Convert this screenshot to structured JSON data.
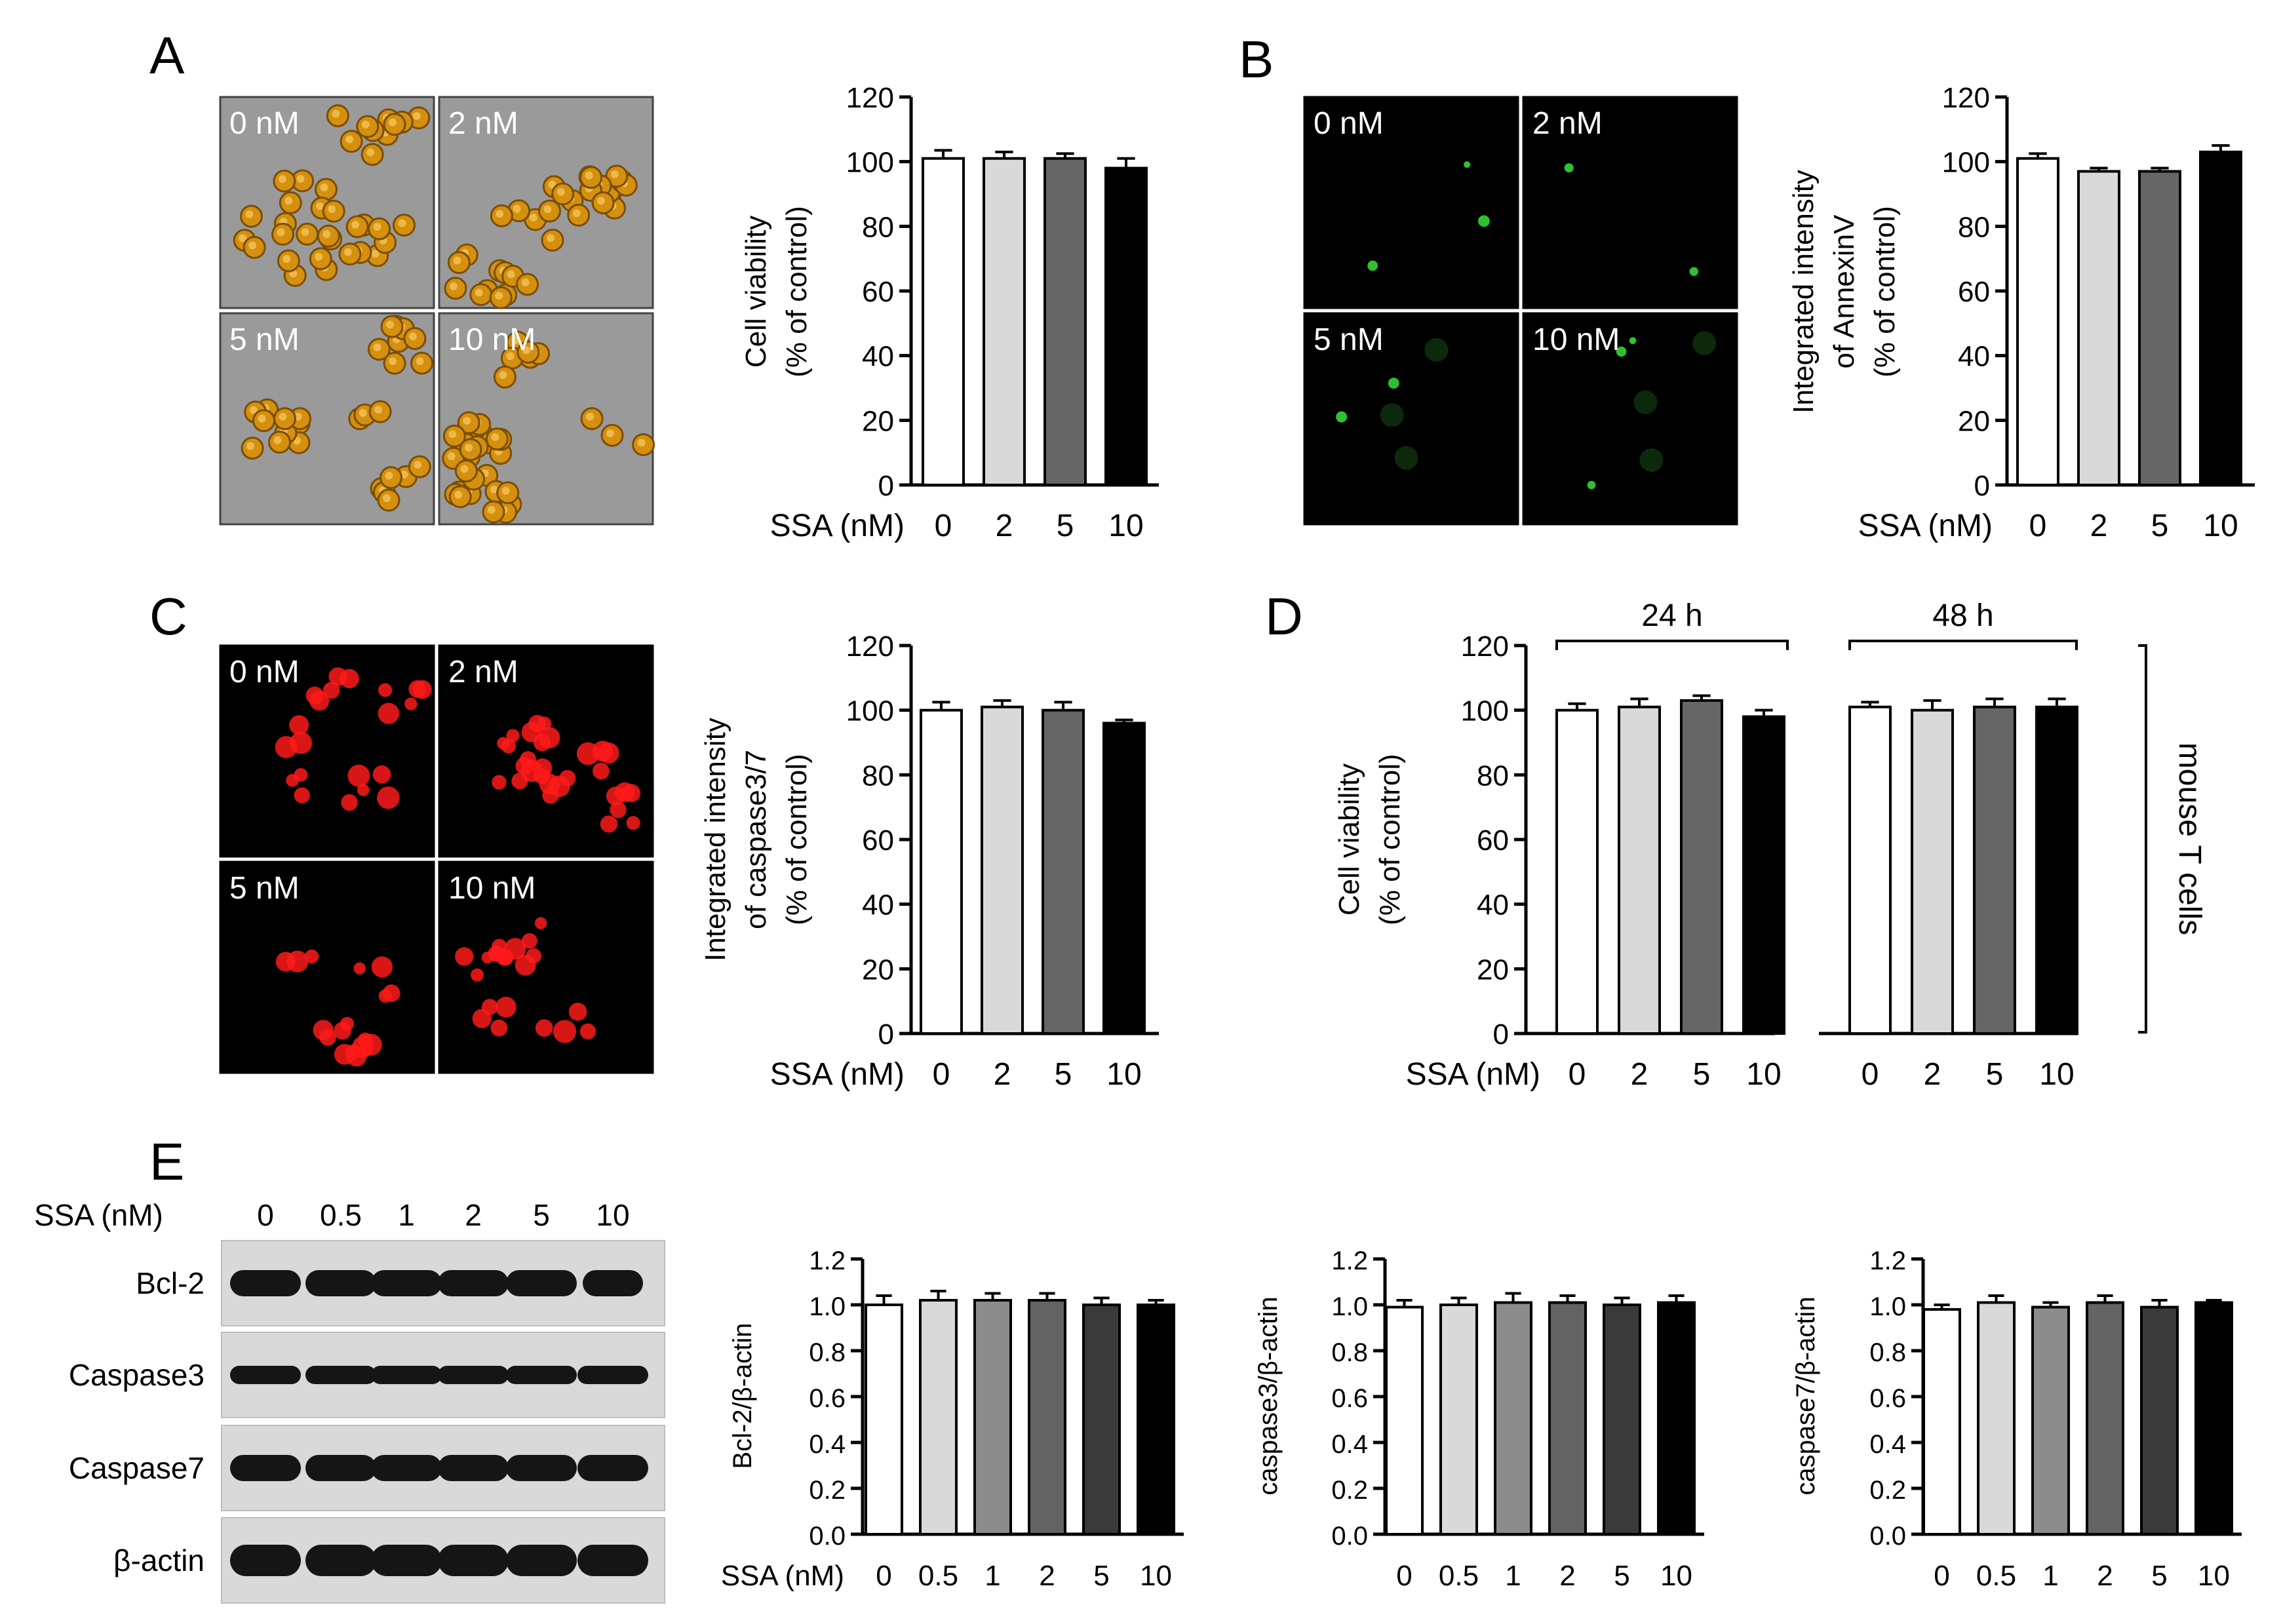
{
  "panels": {
    "A": {
      "letter": "A"
    },
    "B": {
      "letter": "B"
    },
    "C": {
      "letter": "C"
    },
    "D": {
      "letter": "D"
    },
    "E": {
      "letter": "E"
    }
  },
  "micrographs": {
    "dose_labels": [
      "0 nM",
      "2 nM",
      "5 nM",
      "10 nM"
    ],
    "A_style": "brightfield",
    "B_style": "green-fluorescence",
    "C_style": "red-fluorescence"
  },
  "colors": {
    "bar_fills_4": [
      "#ffffff",
      "#d9d9d9",
      "#666666",
      "#000000"
    ],
    "bar_fills_6": [
      "#ffffff",
      "#d9d9d9",
      "#8c8c8c",
      "#636363",
      "#3a3a3a",
      "#000000"
    ],
    "bar_stroke": "#000000",
    "brightfield_bg": "#9a9a9a",
    "cell_color": "#d4900e",
    "green_spot": "#38e038",
    "red_spot": "#ff1a1a"
  },
  "chart_data": [
    {
      "id": "A",
      "type": "bar",
      "x_title": "SSA (nM)",
      "categories": [
        "0",
        "2",
        "5",
        "10"
      ],
      "values": [
        101,
        101,
        101,
        98
      ],
      "errors": [
        2.5,
        2,
        1.5,
        3
      ],
      "ylabel": [
        "Cell viability",
        "(% of control)"
      ],
      "ylim": [
        0,
        120
      ],
      "yticks": [
        "0",
        "20",
        "40",
        "60",
        "80",
        "100",
        "120"
      ]
    },
    {
      "id": "B",
      "type": "bar",
      "x_title": "SSA (nM)",
      "categories": [
        "0",
        "2",
        "5",
        "10"
      ],
      "values": [
        101,
        97,
        97,
        103
      ],
      "errors": [
        1.5,
        1,
        1,
        2
      ],
      "ylabel": [
        "Integrated intensity",
        "of AnnexinV",
        "(% of control)"
      ],
      "ylim": [
        0,
        120
      ],
      "yticks": [
        "0",
        "20",
        "40",
        "60",
        "80",
        "100",
        "120"
      ]
    },
    {
      "id": "C",
      "type": "bar",
      "x_title": "SSA (nM)",
      "categories": [
        "0",
        "2",
        "5",
        "10"
      ],
      "values": [
        100,
        101,
        100,
        96
      ],
      "errors": [
        2.5,
        2,
        2.5,
        1
      ],
      "ylabel": [
        "Integrated intensity",
        "of caspase3/7",
        "(% of control)"
      ],
      "ylim": [
        0,
        120
      ],
      "yticks": [
        "0",
        "20",
        "40",
        "60",
        "80",
        "100",
        "120"
      ]
    },
    {
      "id": "D",
      "type": "bar",
      "x_title": "SSA (nM)",
      "groups": [
        "24 h",
        "48 h"
      ],
      "categories": [
        "0",
        "2",
        "5",
        "10"
      ],
      "series": [
        {
          "values": [
            100,
            101,
            103,
            98
          ],
          "errors": [
            2,
            2.5,
            1.5,
            2
          ]
        },
        {
          "values": [
            101,
            100,
            101,
            101
          ],
          "errors": [
            1.5,
            3,
            2.5,
            2.5
          ]
        }
      ],
      "ylabel": [
        "Cell viability",
        "(% of control)"
      ],
      "side_label": "mouse T cells",
      "ylim": [
        0,
        120
      ],
      "yticks": [
        "0",
        "20",
        "40",
        "60",
        "80",
        "100",
        "120"
      ]
    },
    {
      "id": "E1",
      "type": "bar",
      "x_title": "SSA (nM)",
      "categories": [
        "0",
        "0.5",
        "1",
        "2",
        "5",
        "10"
      ],
      "values": [
        1.0,
        1.02,
        1.02,
        1.02,
        1.0,
        1.0
      ],
      "errors": [
        0.04,
        0.04,
        0.03,
        0.03,
        0.03,
        0.02
      ],
      "ylabel": [
        "Bcl-2/β-actin"
      ],
      "ylim": [
        0,
        1.2
      ],
      "yticks": [
        "0.0",
        "0.2",
        "0.4",
        "0.6",
        "0.8",
        "1.0",
        "1.2"
      ]
    },
    {
      "id": "E2",
      "type": "bar",
      "x_title": "",
      "categories": [
        "0",
        "0.5",
        "1",
        "2",
        "5",
        "10"
      ],
      "values": [
        0.99,
        1.0,
        1.01,
        1.01,
        1.0,
        1.01
      ],
      "errors": [
        0.03,
        0.03,
        0.04,
        0.03,
        0.03,
        0.03
      ],
      "ylabel": [
        "caspase3/β-actin"
      ],
      "ylim": [
        0,
        1.2
      ],
      "yticks": [
        "0.0",
        "0.2",
        "0.4",
        "0.6",
        "0.8",
        "1.0",
        "1.2"
      ]
    },
    {
      "id": "E3",
      "type": "bar",
      "x_title": "",
      "categories": [
        "0",
        "0.5",
        "1",
        "2",
        "5",
        "10"
      ],
      "values": [
        0.98,
        1.01,
        0.99,
        1.01,
        0.99,
        1.01
      ],
      "errors": [
        0.02,
        0.03,
        0.02,
        0.03,
        0.03,
        0.01
      ],
      "ylabel": [
        "caspase7/β-actin"
      ],
      "ylim": [
        0,
        1.2
      ],
      "yticks": [
        "0.0",
        "0.2",
        "0.4",
        "0.6",
        "0.8",
        "1.0",
        "1.2"
      ]
    }
  ],
  "blot": {
    "header_label": "SSA (nM)",
    "lane_labels": [
      "0",
      "0.5",
      "1",
      "2",
      "5",
      "10"
    ],
    "rows": [
      "Bcl-2",
      "Caspase3",
      "Caspase7",
      "β-actin"
    ]
  }
}
